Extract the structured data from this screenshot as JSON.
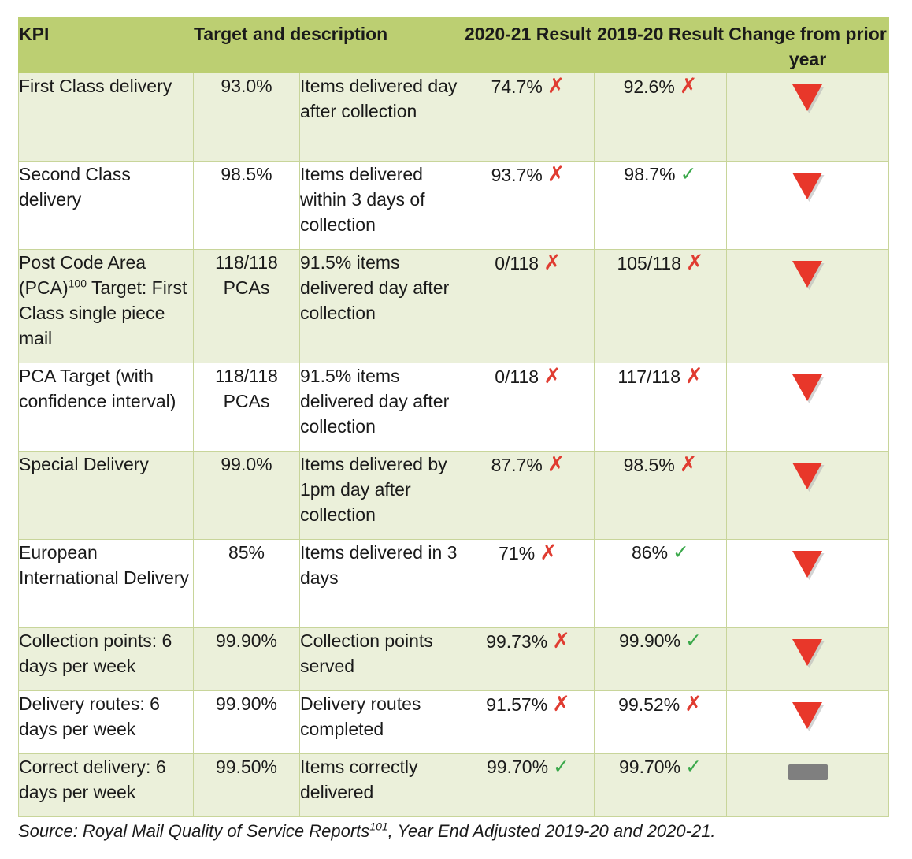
{
  "header": {
    "kpi": "KPI",
    "target": "Target and description",
    "result_2021": "2020-21 Result",
    "result_1920": "2019-20 Result",
    "change": "Change from prior year"
  },
  "marks": {
    "fail": "✗",
    "pass": "✓"
  },
  "rows": [
    {
      "kpi": "First Class delivery",
      "target": "93.0%",
      "desc": "Items delivered day after collection",
      "r2021": "74.7%",
      "r2021_status": "fail",
      "r1920": "92.6%",
      "r1920_status": "fail",
      "change": "down"
    },
    {
      "kpi": "Second Class delivery",
      "target": "98.5%",
      "desc": "Items delivered within 3 days of collection",
      "r2021": "93.7%",
      "r2021_status": "fail",
      "r1920": "98.7%",
      "r1920_status": "pass",
      "change": "down"
    },
    {
      "kpi_pre": "Post Code Area (PCA)",
      "kpi_sup": "100",
      "kpi_post": " Target: First Class single piece mail",
      "target": "118/118 PCAs",
      "desc": "91.5% items delivered day after collection",
      "r2021": "0/118",
      "r2021_status": "fail",
      "r1920": "105/118",
      "r1920_status": "fail",
      "change": "down"
    },
    {
      "kpi": "PCA Target (with confidence interval)",
      "target": "118/118 PCAs",
      "desc": "91.5% items delivered day after collection",
      "r2021": "0/118",
      "r2021_status": "fail",
      "r1920": "117/118",
      "r1920_status": "fail",
      "change": "down"
    },
    {
      "kpi": "Special Delivery",
      "target": "99.0%",
      "desc": "Items delivered by 1pm day after collection",
      "r2021": "87.7%",
      "r2021_status": "fail",
      "r1920": "98.5%",
      "r1920_status": "fail",
      "change": "down"
    },
    {
      "kpi": "European International Delivery",
      "target": "85%",
      "desc": "Items delivered in 3 days",
      "r2021": "71%",
      "r2021_status": "fail",
      "r1920": "86%",
      "r1920_status": "pass",
      "change": "down"
    },
    {
      "kpi": "Collection points: 6 days per week",
      "target": "99.90%",
      "desc": "Collection points served",
      "r2021": "99.73%",
      "r2021_status": "fail",
      "r1920": "99.90%",
      "r1920_status": "pass",
      "change": "down"
    },
    {
      "kpi": "Delivery routes: 6 days per week",
      "target": "99.90%",
      "desc": "Delivery routes completed",
      "r2021": "91.57%",
      "r2021_status": "fail",
      "r1920": "99.52%",
      "r1920_status": "fail",
      "change": "down"
    },
    {
      "kpi": "Correct delivery: 6 days per week",
      "target": "99.50%",
      "desc": "Items correctly delivered",
      "r2021": "99.70%",
      "r2021_status": "pass",
      "r1920": "99.70%",
      "r1920_status": "pass",
      "change": "same"
    }
  ],
  "source": {
    "pre": "Source: Royal Mail Quality of Service Reports",
    "sup": "101",
    "post": ", Year End Adjusted 2019-20 and 2020-21."
  },
  "colors": {
    "header_bg": "#bccf72",
    "band_bg": "#ebf0da",
    "fail": "#e03c31",
    "pass": "#3aa84a",
    "down_arrow": "#e8372a",
    "no_change": "#7f7f7f"
  },
  "icons": {
    "down": "down-triangle-icon",
    "same": "no-change-dash-icon"
  }
}
